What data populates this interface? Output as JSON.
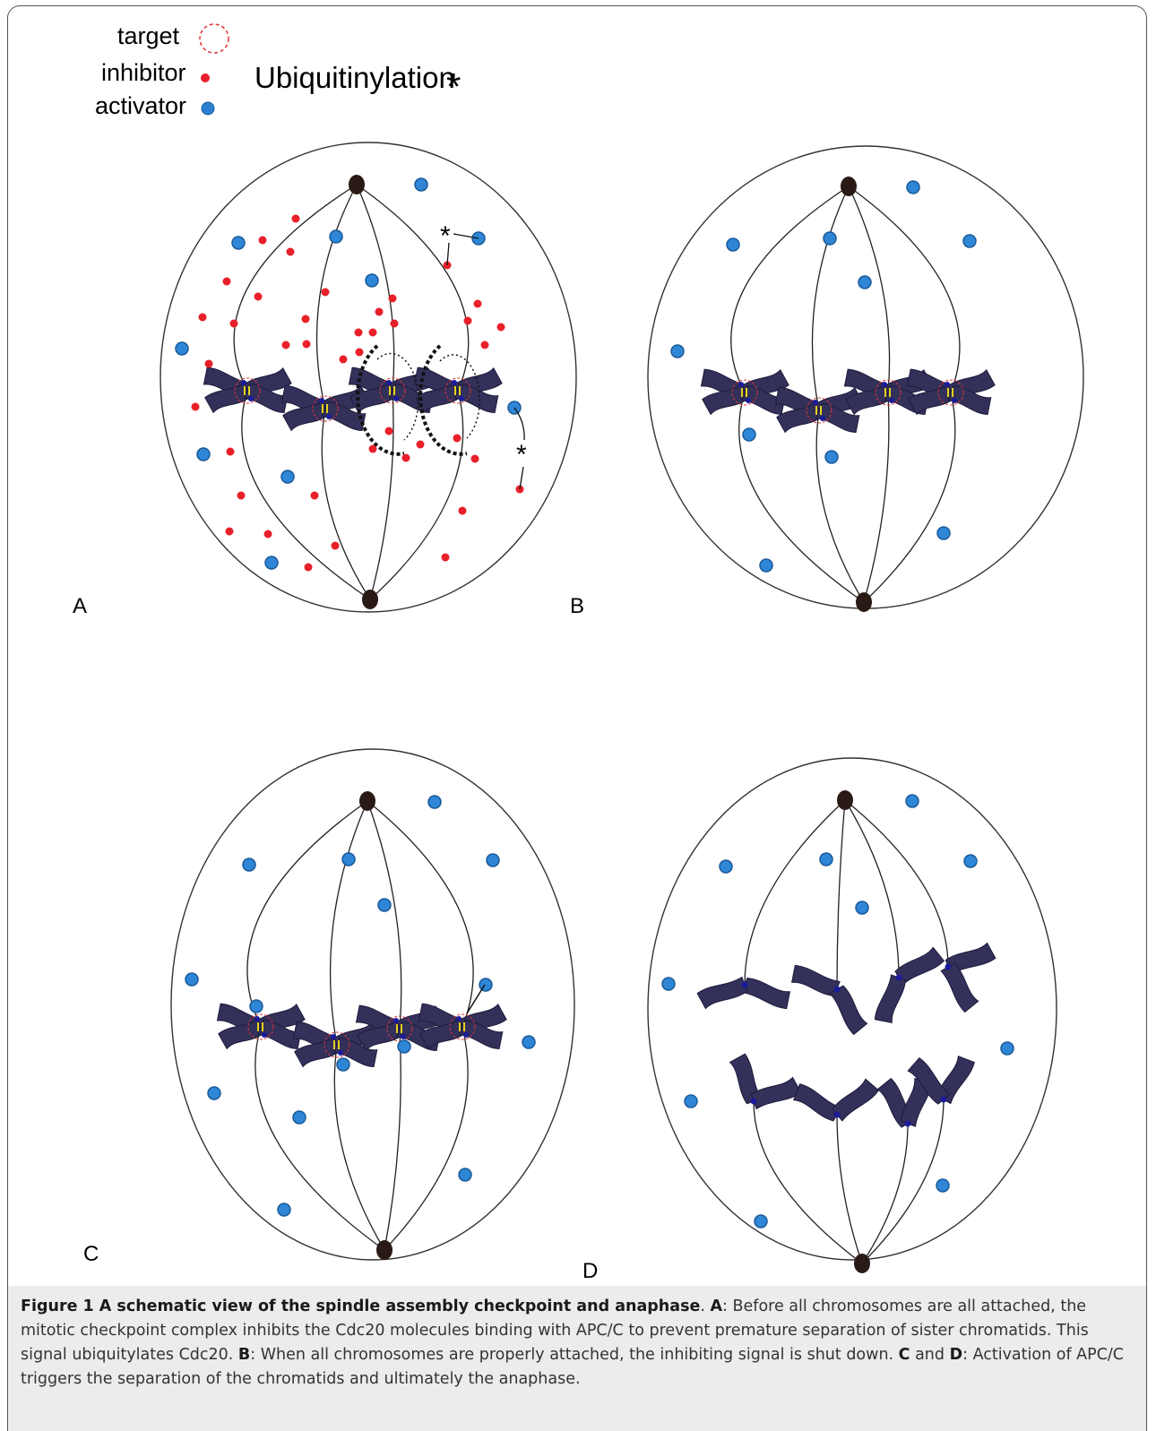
{
  "legend": {
    "target": "target",
    "inhibitor": "inhibitor",
    "activator": "activator",
    "ubiquitinylation": "Ubiquitinylation",
    "ubiquitinylation_symbol": "*"
  },
  "panels": [
    "A",
    "B",
    "C",
    "D"
  ],
  "caption": {
    "runs": [
      "Figure 1 A schematic view of the spindle assembly checkpoint and anaphase",
      ". ",
      "A",
      ": Before all chromosomes are all attached, the mitotic checkpoint complex inhibits the Cdc20 molecules binding with APC/C to prevent premature separation of sister chromatids. This signal ubiquitylates Cdc20. ",
      "B",
      ": When all chromosomes are properly attached, the inhibiting signal is shut down. ",
      "C",
      " and ",
      "D",
      ": Activation of APC/C triggers the separation of the chromatids and ultimately the anaphase."
    ]
  }
}
